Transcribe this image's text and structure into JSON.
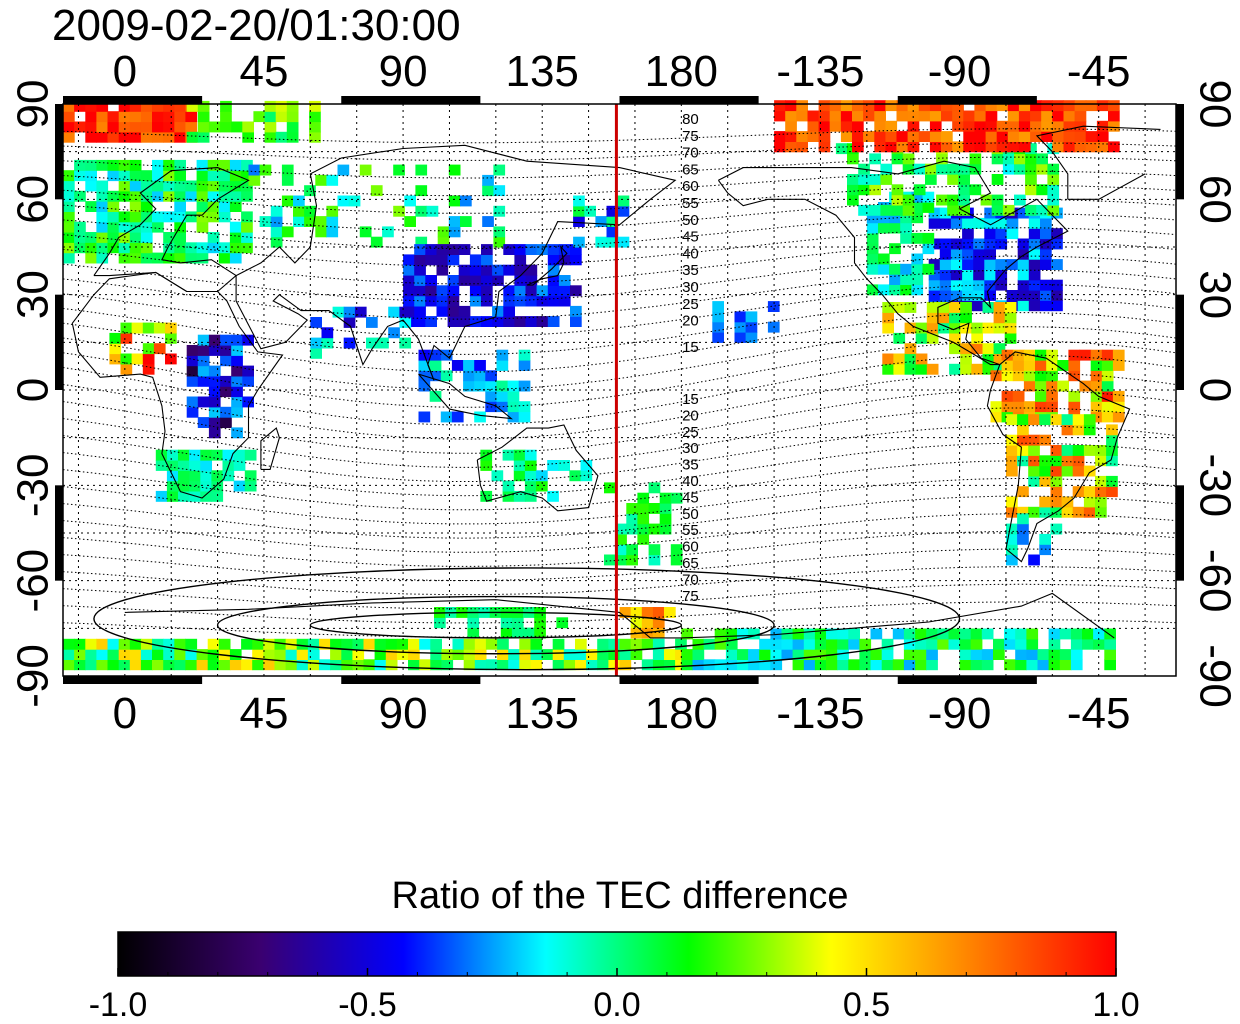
{
  "title": "2009-02-20/01:30:00",
  "map": {
    "lon_ticks": [
      "0",
      "45",
      "90",
      "135",
      "180",
      "-135",
      "-90",
      "-45"
    ],
    "lat_ticks": [
      "90",
      "60",
      "30",
      "0",
      "-30",
      "-60",
      "-90"
    ],
    "contour_labels_north": [
      "80",
      "75",
      "70",
      "65",
      "60",
      "55",
      "50",
      "45",
      "40",
      "35",
      "30",
      "25",
      "20",
      "15"
    ],
    "contour_labels_south": [
      "15",
      "20",
      "25",
      "30",
      "35",
      "40",
      "45",
      "50",
      "55",
      "60",
      "65",
      "70",
      "75"
    ],
    "meridian_line": {
      "longitude": 159,
      "color": "#cc0000"
    }
  },
  "colorbar": {
    "title": "Ratio of the TEC difference",
    "tick_labels": [
      "-1.0",
      "-0.5",
      "0.0",
      "0.5",
      "1.0"
    ],
    "range": [
      -1.0,
      1.0
    ],
    "colors": [
      "#000000",
      "#3a0070",
      "#0000ff",
      "#00ffff",
      "#00ff00",
      "#ffff00",
      "#ff8000",
      "#ff0000"
    ]
  }
}
